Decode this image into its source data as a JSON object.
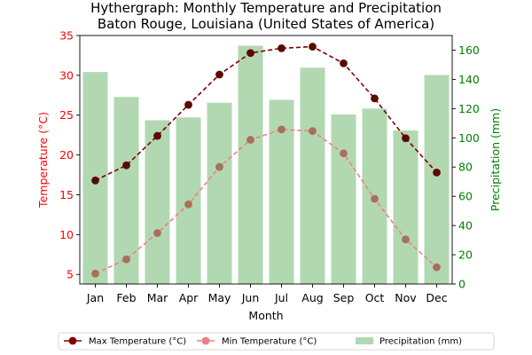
{
  "chart_data": {
    "type": "bar+line",
    "title": "Hythergraph: Monthly Temperature and Precipitation",
    "subtitle": "Baton Rouge, Louisiana (United States of America)",
    "xlabel": "Month",
    "ylabel_left": "Temperature (°C)",
    "ylabel_right": "Precipitation (mm)",
    "categories": [
      "Jan",
      "Feb",
      "Mar",
      "Apr",
      "May",
      "Jun",
      "Jul",
      "Aug",
      "Sep",
      "Oct",
      "Nov",
      "Dec"
    ],
    "ylim_left": [
      3.8,
      35
    ],
    "ylim_right": [
      0,
      170
    ],
    "yticks_left": [
      5,
      10,
      15,
      20,
      25,
      30,
      35
    ],
    "yticks_right": [
      0,
      20,
      40,
      60,
      80,
      100,
      120,
      140,
      160
    ],
    "grid": false,
    "legend_position": "bottom",
    "series": [
      {
        "name": "Max Temperature (°C)",
        "kind": "line",
        "axis": "left",
        "color": "#800000",
        "marker_color": "#5a0a00",
        "dashed": true,
        "values": [
          16.8,
          18.7,
          22.4,
          26.3,
          30.1,
          32.8,
          33.4,
          33.6,
          31.5,
          27.1,
          22.1,
          17.8
        ]
      },
      {
        "name": "Min Temperature (°C)",
        "kind": "line",
        "axis": "left",
        "color": "#f08080",
        "marker_color": "#a8705a",
        "dashed": true,
        "values": [
          5.1,
          6.9,
          10.2,
          13.8,
          18.5,
          21.9,
          23.2,
          23.0,
          20.2,
          14.5,
          9.4,
          5.9
        ]
      },
      {
        "name": "Precipitation (mm)",
        "kind": "bar",
        "axis": "right",
        "color": "#b2d8b2",
        "values": [
          145,
          128,
          112,
          114,
          124,
          163,
          126,
          148,
          116,
          120,
          105,
          143
        ]
      }
    ],
    "colors": {
      "left_axis": "#ff0000",
      "right_axis": "#008000"
    }
  }
}
